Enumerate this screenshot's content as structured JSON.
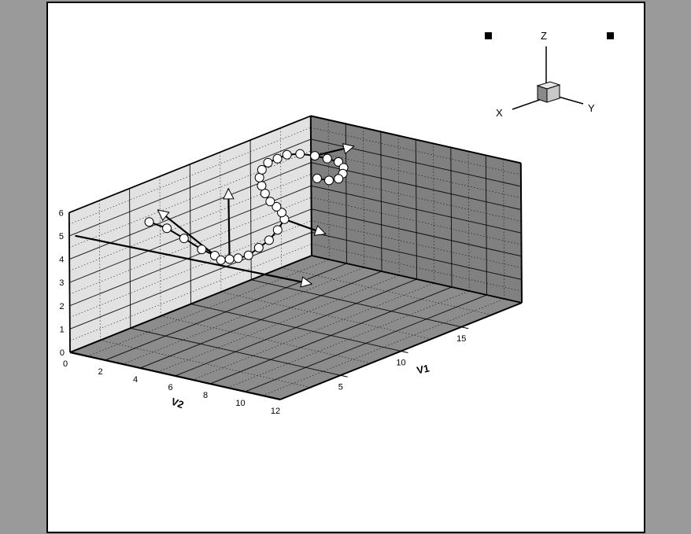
{
  "chart_data": {
    "type": "scatter",
    "title": "",
    "axes": {
      "x": {
        "label": "V1",
        "range": [
          0,
          20
        ],
        "ticks": [
          5,
          10,
          15
        ]
      },
      "y": {
        "label": "V2",
        "range": [
          0,
          12
        ],
        "ticks": [
          0,
          2,
          4,
          6,
          8,
          10,
          12
        ]
      },
      "z": {
        "label": "",
        "range": [
          0,
          6
        ],
        "ticks": [
          0,
          1,
          2,
          3,
          4,
          5,
          6
        ]
      }
    },
    "grid": true,
    "orientation_triad": {
      "x": "X",
      "y": "Y",
      "z": "Z"
    },
    "series": [
      {
        "points": [
          [
            3.0,
            2.5,
            5.4
          ],
          [
            3.3,
            3.3,
            5.2
          ],
          [
            3.7,
            4.0,
            4.8
          ],
          [
            4.0,
            4.8,
            4.4
          ],
          [
            4.5,
            5.2,
            4.1
          ],
          [
            5.0,
            5.2,
            3.8
          ],
          [
            6.0,
            5.0,
            3.6
          ],
          [
            7.0,
            4.8,
            3.4
          ],
          [
            8.0,
            4.7,
            3.3
          ],
          [
            9.0,
            4.6,
            3.4
          ],
          [
            10.0,
            4.5,
            3.5
          ],
          [
            11.0,
            4.3,
            3.7
          ],
          [
            12.0,
            4.0,
            3.9
          ],
          [
            12.5,
            3.5,
            4.0
          ],
          [
            12.8,
            3.0,
            4.1
          ],
          [
            13.0,
            2.5,
            4.2
          ],
          [
            13.3,
            2.0,
            4.4
          ],
          [
            13.6,
            1.6,
            4.6
          ],
          [
            14.0,
            1.2,
            4.8
          ],
          [
            14.5,
            1.0,
            5.0
          ],
          [
            15.0,
            1.0,
            5.2
          ],
          [
            15.5,
            1.2,
            5.3
          ],
          [
            16.0,
            1.4,
            5.4
          ],
          [
            16.5,
            1.8,
            5.4
          ],
          [
            17.0,
            2.3,
            5.3
          ],
          [
            17.3,
            2.8,
            5.2
          ],
          [
            17.5,
            3.3,
            5.1
          ],
          [
            17.2,
            3.8,
            5.0
          ],
          [
            16.7,
            4.1,
            4.9
          ],
          [
            16.2,
            4.2,
            4.8
          ],
          [
            15.7,
            4.0,
            4.8
          ],
          [
            15.3,
            3.6,
            4.9
          ]
        ]
      }
    ],
    "vectors": [
      {
        "from": [
          5.0,
          5.2,
          3.8
        ],
        "to": [
          3.0,
          3.0,
          6.0
        ]
      },
      {
        "from": [
          0.2,
          0.2,
          5.0
        ],
        "to": [
          7.0,
          9.0,
          3.0
        ]
      },
      {
        "from": [
          6.0,
          5.0,
          3.6
        ],
        "to": [
          11.0,
          1.5,
          5.0
        ]
      },
      {
        "from": [
          12.0,
          4.0,
          3.9
        ],
        "to": [
          12.5,
          6.0,
          3.5
        ]
      },
      {
        "from": [
          17.0,
          2.3,
          5.3
        ],
        "to": [
          18.5,
          3.5,
          5.6
        ]
      }
    ]
  }
}
